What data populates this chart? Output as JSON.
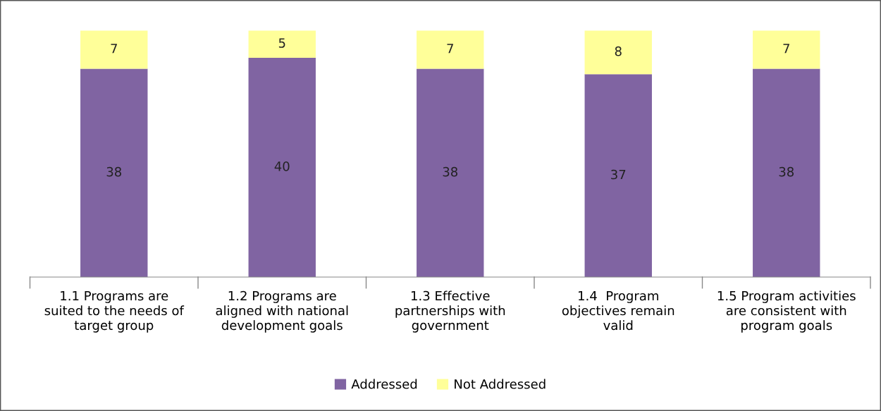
{
  "chart_data": {
    "type": "bar",
    "stacked": true,
    "data_labels": true,
    "legend": "bottom",
    "grid": false,
    "categories": [
      "1.1 Programs are\nsuited to the needs of\ntarget group",
      "1.2 Programs are\naligned with national\ndevelopment goals",
      "1.3 Effective\npartnerships with\ngovernment",
      "1.4  Program\nobjectives remain\nvalid",
      "1.5 Program activities\nare consistent with\nprogram goals"
    ],
    "series": [
      {
        "name": "Addressed",
        "color": "#8064a2",
        "values": [
          38,
          40,
          38,
          37,
          38
        ]
      },
      {
        "name": "Not Addressed",
        "color": "#ffff99",
        "values": [
          7,
          5,
          7,
          8,
          7
        ]
      }
    ]
  }
}
